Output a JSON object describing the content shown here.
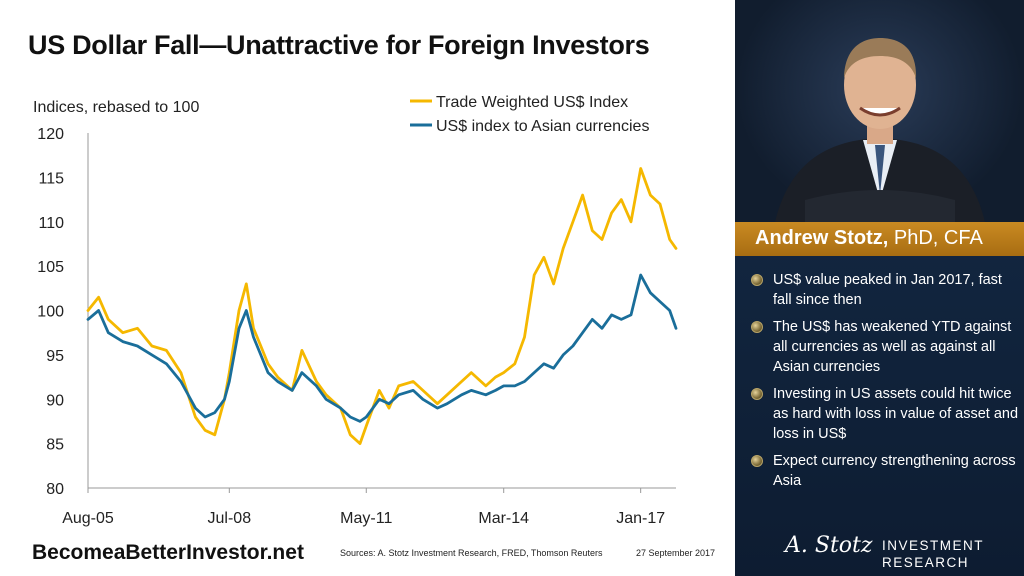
{
  "title": "US Dollar Fall—Unattractive for Foreign Investors",
  "footer": {
    "brand": "BecomeaBetterInvestor.net",
    "sources": "Sources: A. Stotz Investment Research, FRED, Thomson Reuters",
    "date": "27 September  2017"
  },
  "sidebar": {
    "name_bold": "Andrew Stotz,",
    "name_rest": " PhD, CFA",
    "bullets": [
      "US$ value peaked in Jan 2017, fast fall since then",
      "The US$ has weakened YTD against all currencies as well as against all Asian currencies",
      "Investing in US assets could hit twice as hard with loss in value of asset and loss in US$",
      "Expect currency strengthening across Asia"
    ],
    "logo_signature": "A. Stotz",
    "logo_word1": "INVESTMENT",
    "logo_word2": "RESEARCH"
  },
  "colors": {
    "trade_weighted": "#f5b800",
    "asian": "#1a6e9a",
    "accent": "#c98a22",
    "panel": "#0f2038"
  },
  "chart_data": {
    "type": "line",
    "ylabel": "Indices, rebased to 100",
    "ylim": [
      80,
      120
    ],
    "yticks": [
      80,
      85,
      90,
      95,
      100,
      105,
      110,
      115,
      120
    ],
    "xlim": [
      2005.58,
      2017.73
    ],
    "xticks": [
      {
        "label": "Aug-05",
        "x": 2005.58
      },
      {
        "label": "Jul-08",
        "x": 2008.5
      },
      {
        "label": "May-11",
        "x": 2011.33
      },
      {
        "label": "Mar-14",
        "x": 2014.17
      },
      {
        "label": "Jan-17",
        "x": 2017.0
      }
    ],
    "legend_position": "top-right",
    "grid": false,
    "series": [
      {
        "name": "Trade Weighted US$ Index",
        "color": "#f5b800",
        "x": [
          2005.58,
          2005.8,
          2006.0,
          2006.3,
          2006.6,
          2006.9,
          2007.2,
          2007.5,
          2007.8,
          2008.0,
          2008.2,
          2008.4,
          2008.5,
          2008.7,
          2008.85,
          2009.0,
          2009.15,
          2009.3,
          2009.5,
          2009.8,
          2010.0,
          2010.3,
          2010.5,
          2010.8,
          2011.0,
          2011.2,
          2011.33,
          2011.6,
          2011.8,
          2012.0,
          2012.3,
          2012.5,
          2012.8,
          2013.0,
          2013.3,
          2013.5,
          2013.8,
          2014.0,
          2014.17,
          2014.4,
          2014.6,
          2014.8,
          2015.0,
          2015.2,
          2015.4,
          2015.6,
          2015.8,
          2016.0,
          2016.2,
          2016.4,
          2016.6,
          2016.8,
          2017.0,
          2017.2,
          2017.4,
          2017.6,
          2017.73
        ],
        "values": [
          100,
          101.5,
          99,
          97.5,
          98,
          96,
          95.5,
          93,
          88,
          86.5,
          86,
          90,
          93,
          100,
          103,
          98,
          96,
          94,
          92.5,
          91,
          95.5,
          92,
          90.5,
          89,
          86,
          85,
          87,
          91,
          89,
          91.5,
          92,
          91,
          89.5,
          90.5,
          92,
          93,
          91.5,
          92.5,
          93,
          94,
          97,
          104,
          106,
          103,
          107,
          110,
          113,
          109,
          108,
          111,
          112.5,
          110,
          116,
          113,
          112,
          108,
          107
        ]
      },
      {
        "name": "US$ index to Asian currencies",
        "color": "#1a6e9a",
        "x": [
          2005.58,
          2005.8,
          2006.0,
          2006.3,
          2006.6,
          2006.9,
          2007.2,
          2007.5,
          2007.8,
          2008.0,
          2008.2,
          2008.4,
          2008.5,
          2008.7,
          2008.85,
          2009.0,
          2009.15,
          2009.3,
          2009.5,
          2009.8,
          2010.0,
          2010.3,
          2010.5,
          2010.8,
          2011.0,
          2011.2,
          2011.33,
          2011.6,
          2011.8,
          2012.0,
          2012.3,
          2012.5,
          2012.8,
          2013.0,
          2013.3,
          2013.5,
          2013.8,
          2014.0,
          2014.17,
          2014.4,
          2014.6,
          2014.8,
          2015.0,
          2015.2,
          2015.4,
          2015.6,
          2015.8,
          2016.0,
          2016.2,
          2016.4,
          2016.6,
          2016.8,
          2017.0,
          2017.2,
          2017.4,
          2017.6,
          2017.73
        ],
        "values": [
          99,
          100,
          97.5,
          96.5,
          96,
          95,
          94,
          92,
          89,
          88,
          88.5,
          90,
          92,
          98,
          100,
          97,
          95,
          93,
          92,
          91,
          93,
          91.5,
          90,
          89,
          88,
          87.5,
          88,
          90,
          89.5,
          90.5,
          91,
          90,
          89,
          89.5,
          90.5,
          91,
          90.5,
          91,
          91.5,
          91.5,
          92,
          93,
          94,
          93.5,
          95,
          96,
          97.5,
          99,
          98,
          99.5,
          99,
          99.5,
          104,
          102,
          101,
          100,
          98
        ]
      }
    ]
  }
}
